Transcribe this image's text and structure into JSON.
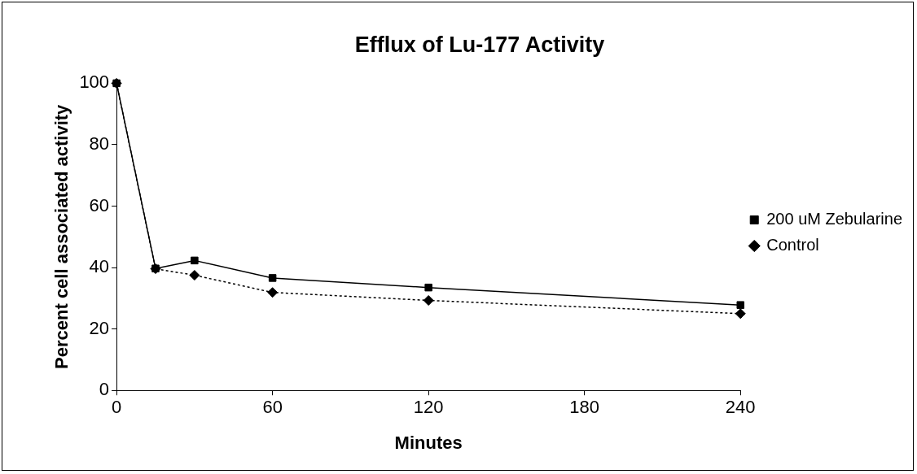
{
  "chart_data": {
    "type": "line",
    "title": "Efflux of Lu-177 Activity",
    "xlabel": "Minutes",
    "ylabel": "Percent cell associated activity",
    "x": [
      0,
      15,
      30,
      60,
      120,
      240
    ],
    "xlim": [
      0,
      240
    ],
    "xticks": [
      0,
      60,
      120,
      180,
      240
    ],
    "ylim": [
      0,
      100
    ],
    "yticks": [
      0,
      20,
      40,
      60,
      80,
      100
    ],
    "grid": false,
    "legend": "right",
    "series": [
      {
        "name": "Control",
        "color": "#000000",
        "line_style": "dotted",
        "marker": "diamond",
        "values": [
          100,
          39.6,
          37.5,
          31.9,
          29.3,
          25
        ]
      },
      {
        "name": "200 uM Zebularine",
        "color": "#000000",
        "line_style": "solid",
        "marker": "square",
        "values": [
          100,
          39.7,
          42.3,
          36.6,
          33.5,
          27.8
        ]
      }
    ]
  }
}
